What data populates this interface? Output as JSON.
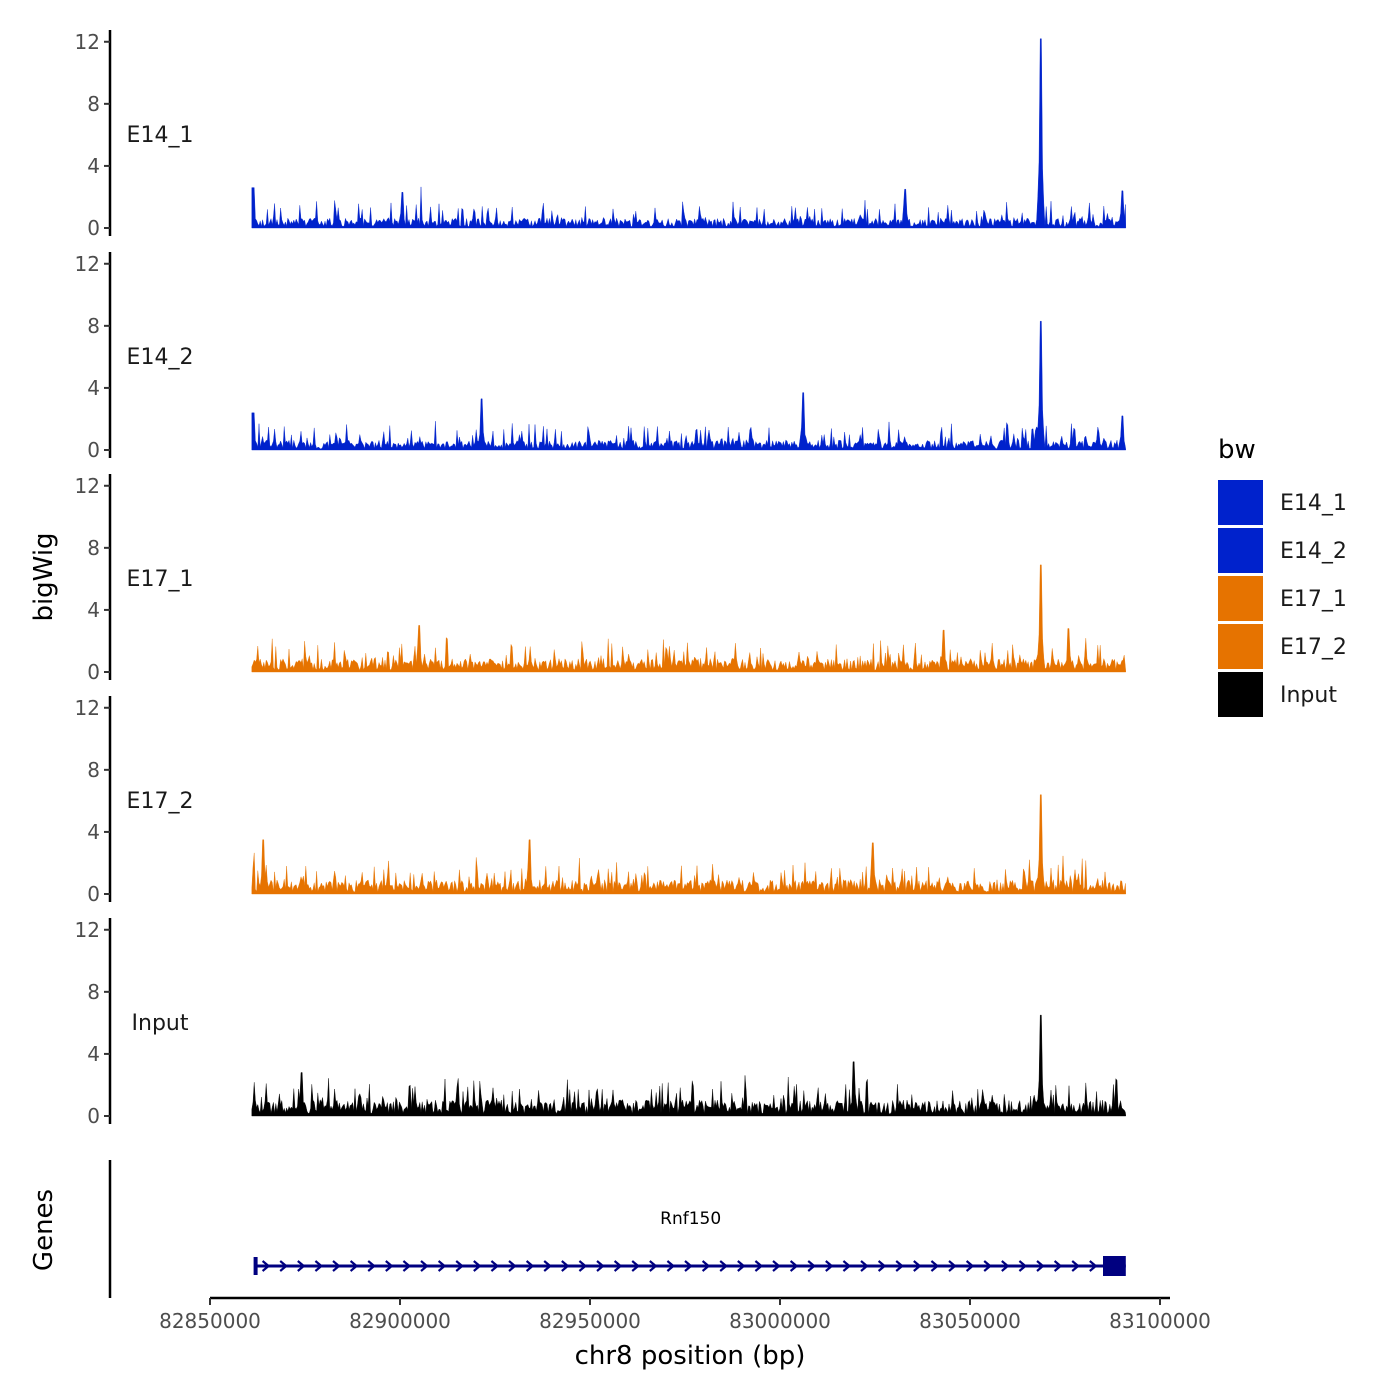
{
  "chart_data": {
    "type": "area",
    "title": "",
    "xlabel": "chr8 position (bp)",
    "ylabel": "bigWig",
    "genes_label": "Genes",
    "xlim": [
      82850000,
      83100000
    ],
    "x_ticks": [
      82850000,
      82900000,
      82950000,
      83000000,
      83050000,
      83100000
    ],
    "x_tick_labels": [
      "82850000",
      "82900000",
      "82950000",
      "83000000",
      "83050000",
      "83100000"
    ],
    "signal_range": [
      82861000,
      83091000
    ],
    "ylim": [
      0,
      12.5
    ],
    "y_ticks": [
      0,
      4,
      8,
      12
    ],
    "y_tick_labels": [
      "0",
      "4",
      "8",
      "12"
    ],
    "legend_title": "bw",
    "series": [
      {
        "name": "E14_1",
        "color": "#0022cc",
        "baseline": 0.55,
        "spread": 1.25,
        "peaks": [
          {
            "x": 83068600,
            "value": 12.2
          },
          {
            "x": 82861300,
            "value": 2.6
          },
          {
            "x": 82900500,
            "value": 2.3
          },
          {
            "x": 83090000,
            "value": 2.4
          },
          {
            "x": 83033000,
            "value": 2.5
          }
        ]
      },
      {
        "name": "E14_2",
        "color": "#0022cc",
        "baseline": 0.55,
        "spread": 1.3,
        "peaks": [
          {
            "x": 83068600,
            "value": 8.3
          },
          {
            "x": 83006000,
            "value": 3.7
          },
          {
            "x": 82921500,
            "value": 3.3
          },
          {
            "x": 82861300,
            "value": 2.4
          },
          {
            "x": 83090000,
            "value": 2.2
          }
        ]
      },
      {
        "name": "E17_1",
        "color": "#e67300",
        "baseline": 0.75,
        "spread": 1.5,
        "peaks": [
          {
            "x": 83068600,
            "value": 6.9
          },
          {
            "x": 82905000,
            "value": 3.0
          },
          {
            "x": 83076000,
            "value": 2.8
          },
          {
            "x": 83043000,
            "value": 2.7
          }
        ]
      },
      {
        "name": "E17_2",
        "color": "#e67300",
        "baseline": 0.8,
        "spread": 1.55,
        "peaks": [
          {
            "x": 83068600,
            "value": 6.4
          },
          {
            "x": 82934000,
            "value": 3.5
          },
          {
            "x": 82864000,
            "value": 3.5
          },
          {
            "x": 83024500,
            "value": 3.3
          }
        ]
      },
      {
        "name": "Input",
        "color": "#000000",
        "baseline": 0.9,
        "spread": 1.6,
        "peaks": [
          {
            "x": 83068600,
            "value": 6.5
          },
          {
            "x": 83019500,
            "value": 3.5
          },
          {
            "x": 82874000,
            "value": 2.8
          }
        ]
      }
    ],
    "genes": [
      {
        "name": "Rnf150",
        "start": 82862000,
        "end": 83091000,
        "strand": "+",
        "color": "#000080",
        "exon_start": 83085000,
        "exon_end": 83091000
      }
    ]
  }
}
